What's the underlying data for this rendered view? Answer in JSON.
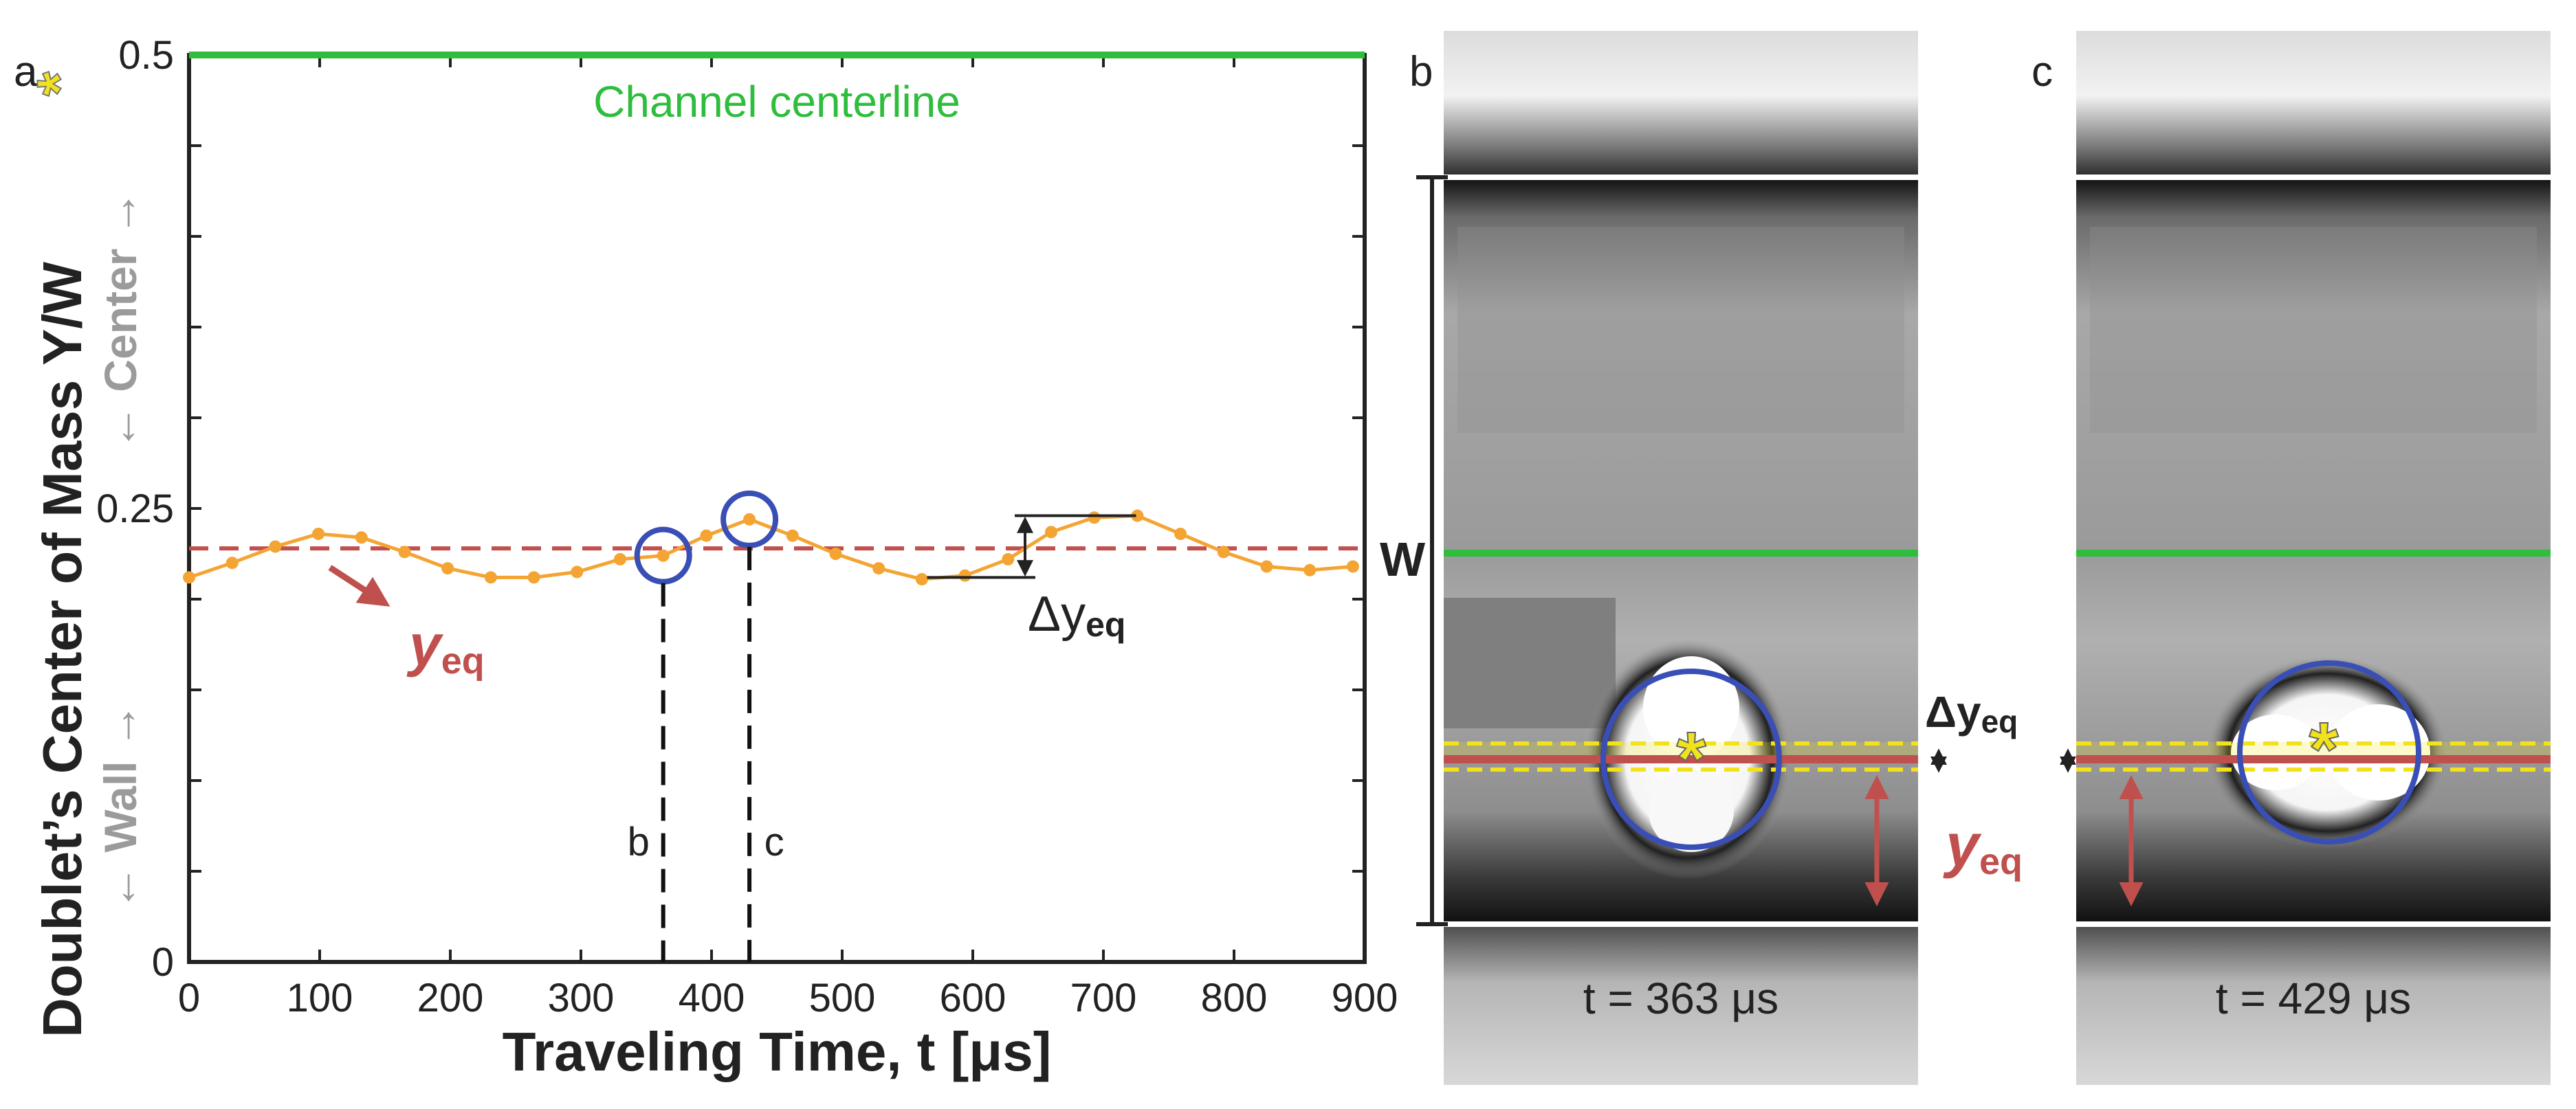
{
  "panels": {
    "a": "a",
    "b": "b",
    "c": "c"
  },
  "chart_data": {
    "type": "line",
    "xlabel": "Traveling Time, t [μs]",
    "ylabel": "Doublet’s Center of Mass Y/W",
    "ylabel_marker": "*",
    "xlim": [
      0,
      900
    ],
    "ylim": [
      0,
      0.5
    ],
    "xticks": [
      0,
      100,
      200,
      300,
      400,
      500,
      600,
      700,
      800,
      900
    ],
    "yticks": [
      {
        "value": 0,
        "label": "0"
      },
      {
        "value": 0.25,
        "label": "0.25"
      },
      {
        "value": 0.5,
        "label": "0.5"
      }
    ],
    "side_labels": {
      "wall": "← Wall →",
      "center": "← Center →"
    },
    "series": [
      {
        "name": "Doublet center of mass",
        "color": "#f4a432",
        "x": [
          0,
          33,
          66,
          99,
          132,
          165,
          198,
          231,
          264,
          297,
          330,
          363,
          396,
          429,
          462,
          495,
          528,
          561,
          594,
          627,
          660,
          693,
          726,
          759,
          792,
          825,
          858,
          891
        ],
        "y": [
          0.212,
          0.22,
          0.229,
          0.236,
          0.234,
          0.226,
          0.217,
          0.212,
          0.212,
          0.215,
          0.222,
          0.224,
          0.235,
          0.244,
          0.235,
          0.225,
          0.217,
          0.211,
          0.213,
          0.222,
          0.237,
          0.245,
          0.246,
          0.236,
          0.226,
          0.218,
          0.216,
          0.218
        ]
      }
    ],
    "reference_lines": [
      {
        "name": "Channel centerline",
        "value": 0.5,
        "color": "#2ebd3c"
      },
      {
        "name": "y_eq",
        "value": 0.228,
        "color": "#c0504d"
      }
    ],
    "markers": [
      {
        "label": "b",
        "x": 363,
        "y": 0.224
      },
      {
        "label": "c",
        "x": 429,
        "y": 0.244
      }
    ],
    "delta_range": [
      0.212,
      0.246
    ],
    "annotations": {
      "centerline": "Channel centerline",
      "yeq_main": "y",
      "yeq_sub": "eq",
      "delta": "Δy",
      "delta_sub": "eq"
    }
  },
  "images": {
    "b": {
      "caption": "t = 363 μs"
    },
    "c": {
      "caption": "t = 429 μs"
    },
    "w_label": "W",
    "delta_main": "Δy",
    "delta_sub": "eq",
    "yeq_main": "y",
    "yeq_sub": "eq"
  },
  "colors": {
    "orange": "#f4a432",
    "red": "#c0504d",
    "green": "#2ebd3c",
    "blue": "#3a4fb5",
    "yellow": "#f2e21c",
    "gray_label": "#9b9b9b"
  }
}
